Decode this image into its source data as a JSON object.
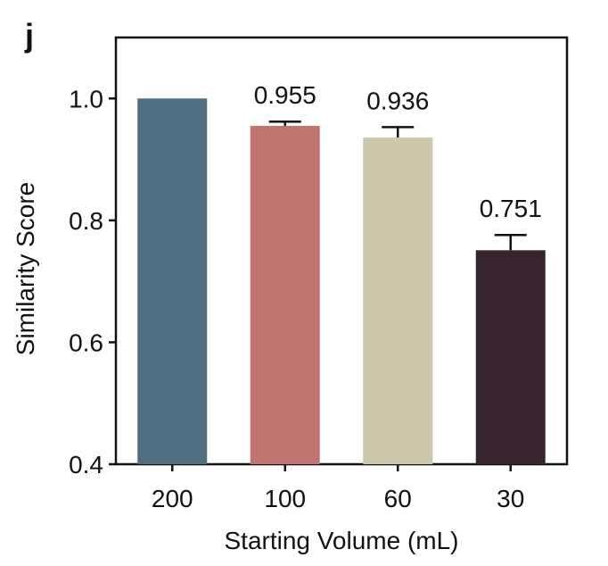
{
  "panel_label": "j",
  "chart_data": {
    "type": "bar",
    "categories": [
      "200",
      "100",
      "60",
      "30"
    ],
    "values": [
      1.0,
      0.955,
      0.936,
      0.751
    ],
    "error_upper": [
      1.0,
      0.962,
      0.953,
      0.776
    ],
    "data_labels": [
      "",
      "0.955",
      "0.936",
      "0.751"
    ],
    "colors": [
      "#4f6e82",
      "#c27570",
      "#ccc9ad",
      "#37262f"
    ],
    "xlabel": "Starting Volume (mL)",
    "ylabel": "Similarity Score",
    "ylim": [
      0.4,
      1.1
    ],
    "yticks": [
      0.4,
      0.6,
      0.8,
      1.0
    ],
    "ytick_labels": [
      "0.4",
      "0.6",
      "0.8",
      "1.0"
    ],
    "grid": false,
    "legend": "none"
  }
}
